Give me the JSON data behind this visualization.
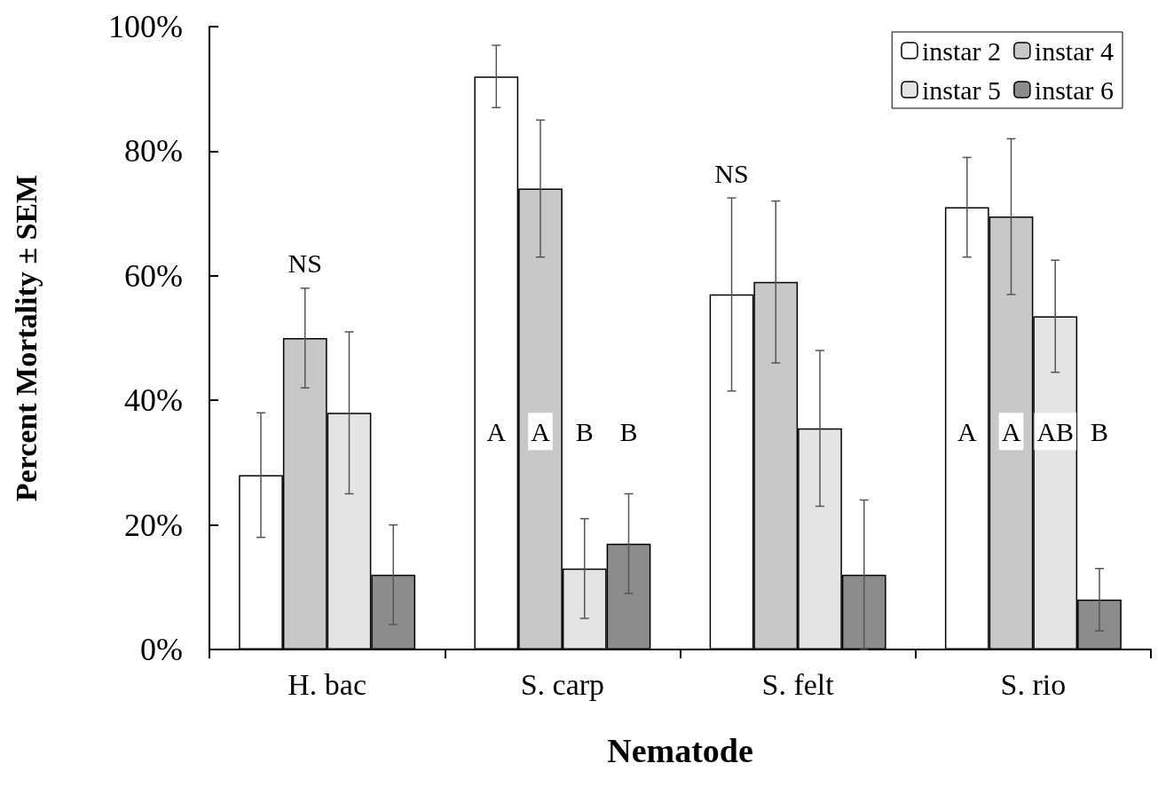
{
  "chart_data": {
    "type": "bar",
    "xlabel": "Nematode",
    "ylabel": "Percent Mortality ± SEM",
    "categories": [
      "H. bac",
      "S. carp",
      "S. felt",
      "S. rio"
    ],
    "series": [
      {
        "name": "instar 2",
        "color": "#ffffff",
        "values": [
          28,
          92,
          57,
          71
        ],
        "errors": [
          10,
          5,
          15.5,
          8
        ]
      },
      {
        "name": "instar 4",
        "color": "#c8c8c8",
        "values": [
          50,
          74,
          59,
          69.5
        ],
        "errors": [
          8,
          11,
          13,
          12.5
        ]
      },
      {
        "name": "instar 5",
        "color": "#e4e4e4",
        "values": [
          38,
          13,
          35.5,
          53.5
        ],
        "errors": [
          13,
          8,
          12.5,
          9
        ]
      },
      {
        "name": "instar 6",
        "color": "#8c8c8c",
        "values": [
          12,
          17,
          12,
          8
        ],
        "errors": [
          8,
          8,
          12,
          5
        ]
      }
    ],
    "ylim": [
      0,
      100
    ],
    "yticks": [
      {
        "value": 0,
        "label": "0%"
      },
      {
        "value": 20,
        "label": "20%"
      },
      {
        "value": 40,
        "label": "40%"
      },
      {
        "value": 60,
        "label": "60%"
      },
      {
        "value": 80,
        "label": "80%"
      },
      {
        "value": 100,
        "label": "100%"
      }
    ],
    "grid": false,
    "legend": "top right",
    "annotations": [
      "NS",
      {
        "text": "A",
        "x": "S. carp",
        "y": 35
      },
      {
        "text": "A",
        "x": "S. carp",
        "y": 35
      },
      {
        "text": "B",
        "x": "S. carp",
        "y": 35
      },
      {
        "text": "B",
        "x": "S. carp",
        "y": 35
      },
      "NS",
      {
        "text": "A",
        "x": "S. rio",
        "y": 35
      },
      {
        "text": "A",
        "x": "S. rio",
        "y": 35
      },
      {
        "text": "AB",
        "x": "S. rio",
        "y": 35
      },
      {
        "text": "B",
        "x": "S. rio",
        "y": 35
      }
    ]
  }
}
